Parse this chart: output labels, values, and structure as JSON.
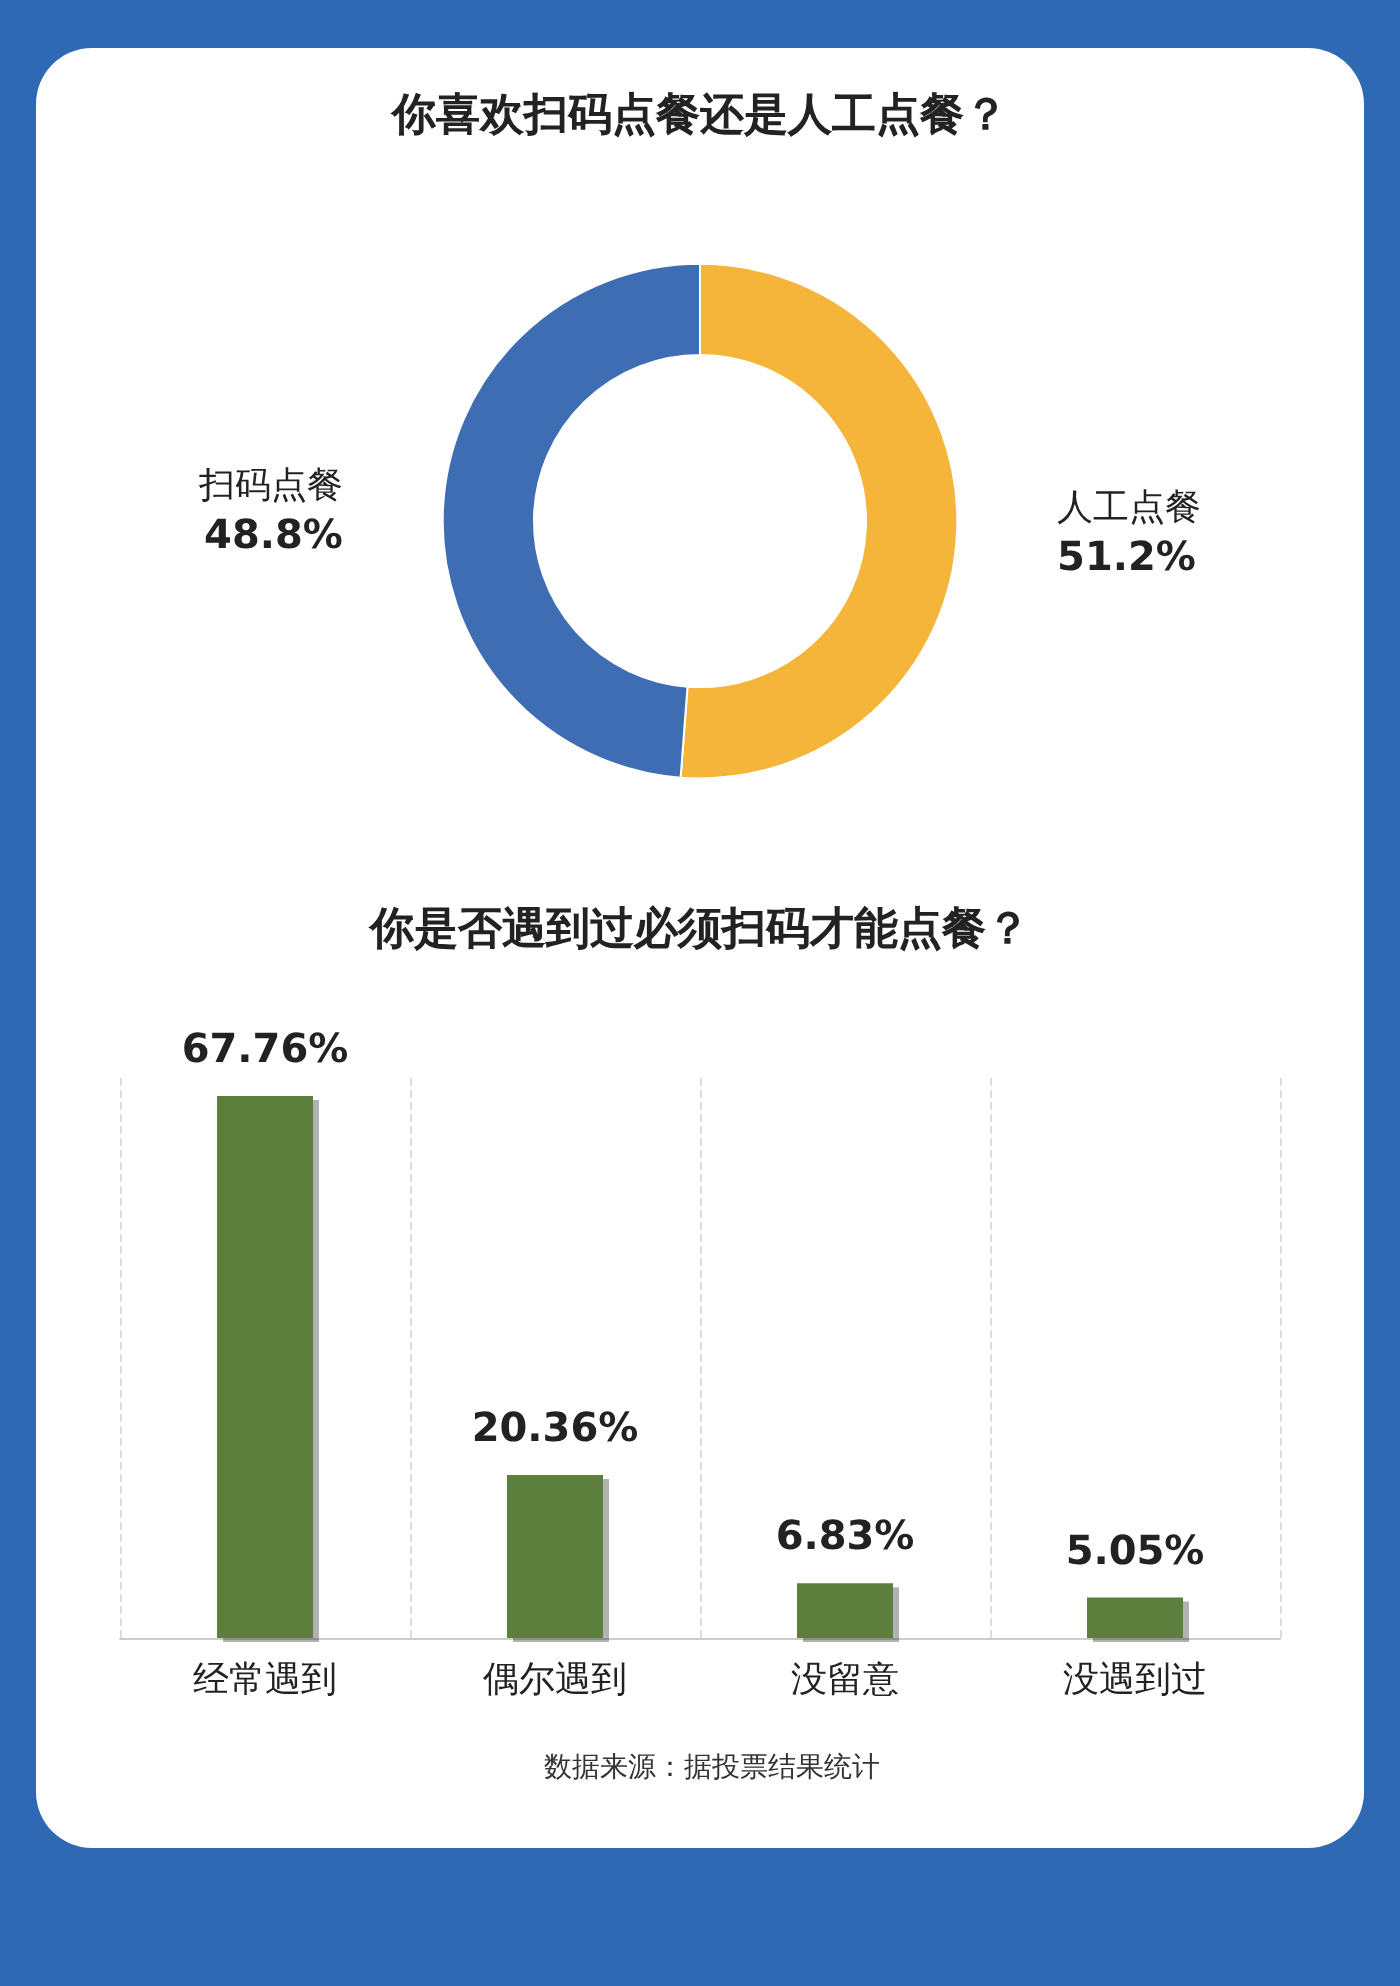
{
  "chart_data": [
    {
      "type": "donut",
      "title": "你喜欢扫码点餐还是人工点餐？",
      "categories": [
        "人工点餐",
        "扫码点餐"
      ],
      "values": [
        51.2,
        48.8
      ],
      "colors": [
        "#f4b53a",
        "#3f6db3"
      ],
      "value_labels": [
        "51.2%",
        "48.8%"
      ],
      "legend": false
    },
    {
      "type": "bar",
      "title": "你是否遇到过必须扫码才能点餐？",
      "categories": [
        "经常遇到",
        "偶尔遇到",
        "没留意",
        "没遇到过"
      ],
      "values": [
        67.76,
        20.36,
        6.83,
        5.05
      ],
      "color": "#5b7f3e",
      "value_labels": [
        "67.76%",
        "20.36%",
        "6.83%",
        "5.05%"
      ],
      "grid": "x",
      "tick_labels": "x",
      "legend": false,
      "annotations": [
        "数据来源：据投票结果统计"
      ]
    }
  ]
}
